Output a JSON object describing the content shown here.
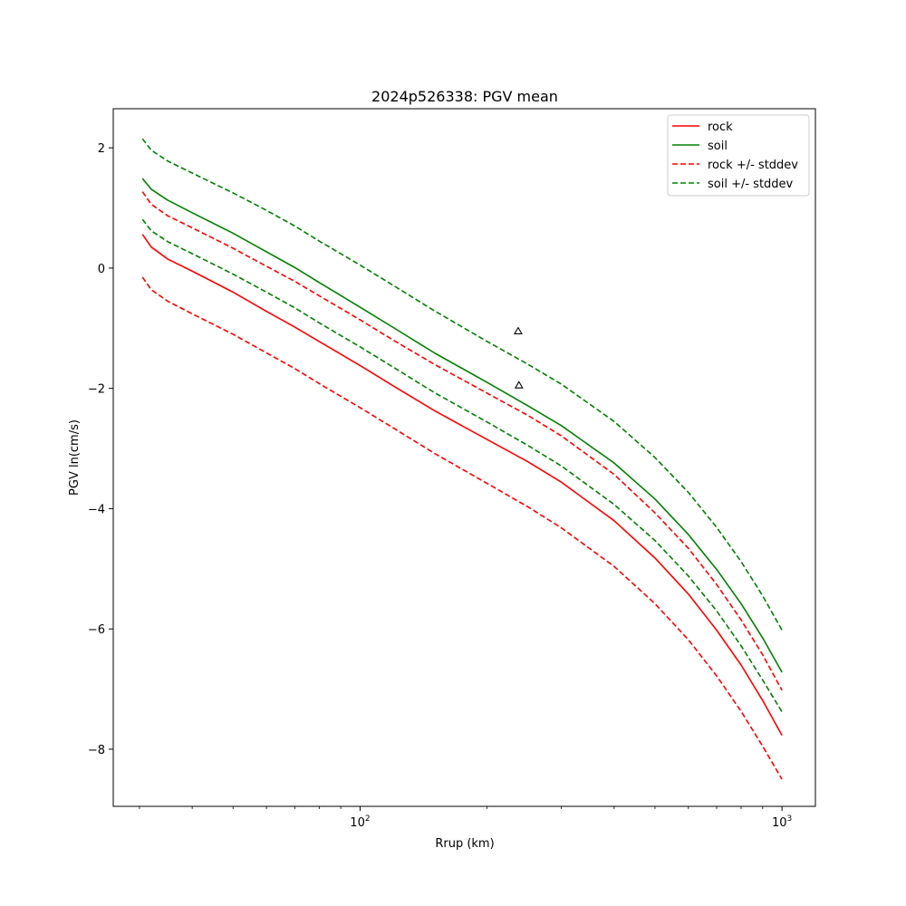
{
  "chart_data": {
    "type": "line",
    "title": "2024p526338: PGV mean",
    "xlabel": "Rrup (km)",
    "ylabel": "PGV ln(cm/s)",
    "xscale": "log",
    "xlim": [
      26,
      1200
    ],
    "ylim": [
      -8.95,
      2.65
    ],
    "x_major_ticks": [
      {
        "value": 100,
        "base": "10",
        "exp": "2"
      },
      {
        "value": 1000,
        "base": "10",
        "exp": "3"
      }
    ],
    "x_minor_ticks": [
      30,
      40,
      50,
      60,
      70,
      80,
      90,
      200,
      300,
      400,
      500,
      600,
      700,
      800,
      900
    ],
    "y_ticks": [
      {
        "value": 2,
        "label": "2"
      },
      {
        "value": 0,
        "label": "0"
      },
      {
        "value": -2,
        "label": "−2"
      },
      {
        "value": -4,
        "label": "−4"
      },
      {
        "value": -6,
        "label": "−6"
      },
      {
        "value": -8,
        "label": "−8"
      }
    ],
    "grid": false,
    "legend_position": "upper right",
    "x": [
      30.5,
      32,
      35,
      40,
      50,
      60,
      70,
      80,
      100,
      120,
      150,
      200,
      250,
      300,
      400,
      500,
      600,
      700,
      800,
      900,
      1000
    ],
    "series": [
      {
        "name": "rock",
        "color": "#ff0000",
        "dash": "solid",
        "legend": true,
        "values": [
          0.56,
          0.35,
          0.15,
          -0.05,
          -0.4,
          -0.72,
          -0.98,
          -1.22,
          -1.62,
          -1.96,
          -2.37,
          -2.85,
          -3.22,
          -3.56,
          -4.2,
          -4.82,
          -5.42,
          -6.02,
          -6.6,
          -7.19,
          -7.77
        ]
      },
      {
        "name": "soil",
        "color": "#008000",
        "dash": "solid",
        "legend": true,
        "values": [
          1.49,
          1.31,
          1.13,
          0.92,
          0.58,
          0.27,
          0.01,
          -0.24,
          -0.65,
          -0.99,
          -1.41,
          -1.9,
          -2.29,
          -2.62,
          -3.24,
          -3.84,
          -4.43,
          -5.01,
          -5.58,
          -6.15,
          -6.72
        ]
      },
      {
        "name": "rock +/- stddev",
        "color": "#ff0000",
        "dash": "dashed",
        "legend": true,
        "values": [
          1.27,
          1.06,
          0.87,
          0.67,
          0.33,
          0.03,
          -0.22,
          -0.46,
          -0.86,
          -1.2,
          -1.6,
          -2.08,
          -2.45,
          -2.79,
          -3.43,
          -4.07,
          -4.66,
          -5.26,
          -5.85,
          -6.43,
          -7.02
        ]
      },
      {
        "name": "rock - stddev",
        "color": "#ff0000",
        "dash": "dashed",
        "legend": false,
        "values": [
          -0.15,
          -0.36,
          -0.55,
          -0.76,
          -1.1,
          -1.41,
          -1.67,
          -1.92,
          -2.32,
          -2.66,
          -3.08,
          -3.58,
          -3.97,
          -4.32,
          -4.96,
          -5.58,
          -6.18,
          -6.78,
          -7.37,
          -7.95,
          -8.5
        ]
      },
      {
        "name": "soil +/- stddev",
        "color": "#008000",
        "dash": "dashed",
        "legend": true,
        "values": [
          2.15,
          1.96,
          1.78,
          1.58,
          1.25,
          0.96,
          0.7,
          0.45,
          0.05,
          -0.29,
          -0.71,
          -1.22,
          -1.6,
          -1.93,
          -2.55,
          -3.15,
          -3.73,
          -4.31,
          -4.88,
          -5.45,
          -6.02
        ]
      },
      {
        "name": "soil - stddev",
        "color": "#008000",
        "dash": "dashed",
        "legend": false,
        "values": [
          0.81,
          0.62,
          0.44,
          0.24,
          -0.1,
          -0.4,
          -0.66,
          -0.91,
          -1.31,
          -1.65,
          -2.07,
          -2.56,
          -2.95,
          -3.29,
          -3.93,
          -4.53,
          -5.12,
          -5.7,
          -6.28,
          -6.85,
          -7.38
        ]
      }
    ],
    "markers": [
      {
        "x": 237,
        "y": -1.05,
        "shape": "triangle"
      },
      {
        "x": 238,
        "y": -1.95,
        "shape": "triangle"
      }
    ]
  }
}
